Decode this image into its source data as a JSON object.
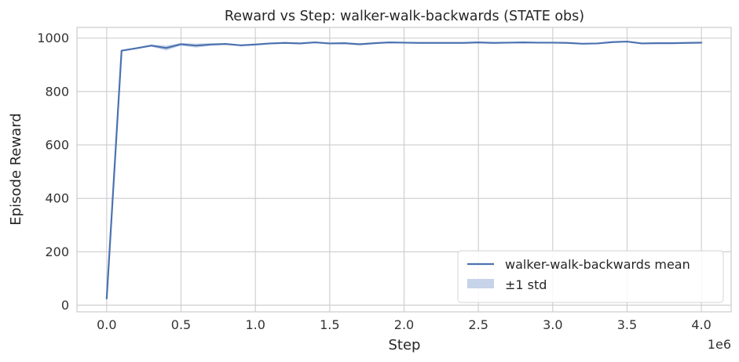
{
  "chart_data": {
    "type": "line",
    "title": "Reward vs Step: walker-walk-backwards (STATE obs)",
    "xlabel": "Step",
    "ylabel": "Episode Reward",
    "x_offset_label": "1e6",
    "xlim": [
      -0.2,
      4.2
    ],
    "ylim": [
      -25,
      1040
    ],
    "x_ticks": [
      0.0,
      0.5,
      1.0,
      1.5,
      2.0,
      2.5,
      3.0,
      3.5,
      4.0
    ],
    "x_tick_labels": [
      "0.0",
      "0.5",
      "1.0",
      "1.5",
      "2.0",
      "2.5",
      "3.0",
      "3.5",
      "4.0"
    ],
    "y_ticks": [
      0,
      200,
      400,
      600,
      800,
      1000
    ],
    "y_tick_labels": [
      "0",
      "200",
      "400",
      "600",
      "800",
      "1000"
    ],
    "grid": true,
    "legend_position": "bottom-right",
    "colors": {
      "mean": "#4c72b0",
      "band": "#c6d3e8",
      "grid": "#cccccc",
      "axis": "#cccccc"
    },
    "series": [
      {
        "name": "walker-walk-backwards mean",
        "x": [
          0.0,
          0.1,
          0.2,
          0.3,
          0.4,
          0.5,
          0.6,
          0.7,
          0.8,
          0.9,
          1.0,
          1.1,
          1.2,
          1.3,
          1.4,
          1.5,
          1.6,
          1.7,
          1.8,
          1.9,
          2.0,
          2.1,
          2.2,
          2.3,
          2.4,
          2.5,
          2.6,
          2.7,
          2.8,
          2.9,
          3.0,
          3.1,
          3.2,
          3.3,
          3.4,
          3.5,
          3.6,
          3.7,
          3.8,
          3.9,
          4.0
        ],
        "y": [
          25,
          953,
          962,
          972,
          963,
          977,
          972,
          976,
          978,
          973,
          976,
          980,
          982,
          980,
          984,
          980,
          981,
          977,
          981,
          984,
          983,
          982,
          982,
          982,
          982,
          984,
          982,
          983,
          984,
          983,
          983,
          982,
          979,
          980,
          985,
          987,
          980,
          981,
          981,
          982,
          983
        ],
        "std": [
          0,
          3,
          3,
          4,
          10,
          5,
          8,
          5,
          3,
          3,
          4,
          3,
          3,
          4,
          3,
          3,
          3,
          3,
          2,
          2,
          3,
          2,
          2,
          2,
          2,
          2,
          2,
          2,
          2,
          2,
          2,
          2,
          2,
          3,
          2,
          2,
          3,
          2,
          2,
          2,
          2
        ]
      }
    ],
    "band_label": "±1 std"
  }
}
